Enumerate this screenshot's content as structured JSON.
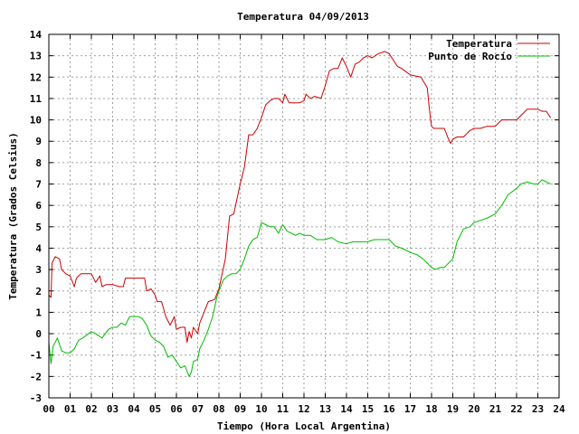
{
  "chart_data": {
    "type": "line",
    "title": "Temperatura 04/09/2013",
    "xlabel": "Tiempo (Hora Local Argentina)",
    "ylabel": "Temperatura (Grados Celsius)",
    "xlim": [
      0,
      24
    ],
    "ylim": [
      -3,
      14
    ],
    "x_ticks": [
      "00",
      "01",
      "02",
      "03",
      "04",
      "05",
      "06",
      "07",
      "08",
      "09",
      "10",
      "11",
      "12",
      "13",
      "14",
      "15",
      "16",
      "17",
      "18",
      "19",
      "20",
      "21",
      "22",
      "23",
      "24"
    ],
    "y_ticks": [
      -3,
      -2,
      -1,
      0,
      1,
      2,
      3,
      4,
      5,
      6,
      7,
      8,
      9,
      10,
      11,
      12,
      13,
      14
    ],
    "grid": true,
    "legend_position": "top-right",
    "series": [
      {
        "name": "Temperatura",
        "color": "#cc0000",
        "x": [
          0,
          0.1,
          0.15,
          0.3,
          0.5,
          0.6,
          0.8,
          1,
          1.2,
          1.3,
          1.5,
          2,
          2.2,
          2.4,
          2.5,
          2.7,
          3,
          3.3,
          3.5,
          3.6,
          4,
          4.3,
          4.5,
          4.6,
          4.8,
          5,
          5.1,
          5.3,
          5.5,
          5.7,
          5.9,
          6,
          6.2,
          6.4,
          6.5,
          6.6,
          6.7,
          6.8,
          7,
          7.1,
          7.3,
          7.5,
          7.8,
          8,
          8.3,
          8.5,
          8.7,
          9,
          9.2,
          9.4,
          9.6,
          9.8,
          10,
          10.2,
          10.4,
          10.6,
          10.8,
          11,
          11.1,
          11.3,
          11.5,
          11.8,
          12,
          12.1,
          12.3,
          12.5,
          12.8,
          13,
          13.2,
          13.4,
          13.6,
          13.8,
          14,
          14.2,
          14.4,
          14.6,
          14.8,
          15,
          15.2,
          15.5,
          15.8,
          16,
          16.2,
          16.4,
          16.6,
          17,
          17.5,
          17.8,
          17.9,
          18,
          18.1,
          18.2,
          18.4,
          18.6,
          18.8,
          18.9,
          19,
          19.2,
          19.5,
          19.8,
          20,
          20.3,
          20.6,
          21,
          21.3,
          21.6,
          22,
          22.2,
          22.5,
          22.8,
          23,
          23.2,
          23.4,
          23.6
        ],
        "values": [
          1.8,
          1.7,
          3.3,
          3.6,
          3.5,
          3.0,
          2.8,
          2.7,
          2.2,
          2.6,
          2.8,
          2.8,
          2.4,
          2.7,
          2.2,
          2.3,
          2.3,
          2.2,
          2.2,
          2.6,
          2.6,
          2.6,
          2.6,
          2.0,
          2.1,
          1.8,
          1.5,
          1.5,
          0.8,
          0.4,
          0.8,
          0.2,
          0.3,
          0.3,
          -0.4,
          0.1,
          -0.2,
          0.3,
          0.0,
          0.5,
          1.0,
          1.5,
          1.6,
          2.1,
          3.5,
          5.5,
          5.6,
          7.0,
          7.8,
          9.3,
          9.3,
          9.6,
          10.1,
          10.7,
          10.9,
          11.0,
          11.0,
          10.8,
          11.2,
          10.8,
          10.8,
          10.8,
          10.9,
          11.2,
          11.0,
          11.1,
          11.0,
          11.6,
          12.3,
          12.4,
          12.4,
          12.9,
          12.5,
          12.0,
          12.6,
          12.7,
          12.9,
          13.0,
          12.9,
          13.1,
          13.2,
          13.1,
          12.8,
          12.5,
          12.4,
          12.1,
          12.0,
          11.5,
          10.5,
          9.7,
          9.6,
          9.6,
          9.6,
          9.6,
          9.1,
          8.9,
          9.1,
          9.2,
          9.2,
          9.5,
          9.6,
          9.6,
          9.7,
          9.7,
          10.0,
          10.0,
          10.0,
          10.2,
          10.5,
          10.5,
          10.5,
          10.4,
          10.4,
          10.1
        ]
      },
      {
        "name": "Punto de Rocío",
        "color": "#00bb00",
        "x": [
          0,
          0.1,
          0.2,
          0.4,
          0.6,
          0.8,
          1,
          1.2,
          1.4,
          1.6,
          2,
          2.2,
          2.5,
          2.8,
          3,
          3.2,
          3.4,
          3.6,
          3.8,
          4,
          4.2,
          4.4,
          4.6,
          4.8,
          5,
          5.2,
          5.4,
          5.6,
          5.8,
          6,
          6.2,
          6.4,
          6.6,
          6.7,
          6.8,
          7,
          7.1,
          7.3,
          7.5,
          7.7,
          7.9,
          8,
          8.2,
          8.4,
          8.6,
          8.8,
          9,
          9.2,
          9.4,
          9.6,
          9.8,
          10,
          10.2,
          10.4,
          10.6,
          10.8,
          11,
          11.2,
          11.4,
          11.6,
          11.8,
          12,
          12.3,
          12.6,
          13,
          13.3,
          13.6,
          14,
          14.3,
          14.6,
          15,
          15.3,
          15.6,
          16,
          16.3,
          16.6,
          17,
          17.3,
          17.6,
          17.8,
          18,
          18.2,
          18.4,
          18.6,
          18.8,
          19,
          19.2,
          19.5,
          19.8,
          20,
          20.3,
          20.6,
          21,
          21.3,
          21.6,
          22,
          22.2,
          22.5,
          22.8,
          23,
          23.2,
          23.4,
          23.6
        ],
        "values": [
          -0.4,
          -1.4,
          -0.6,
          -0.2,
          -0.8,
          -0.9,
          -0.9,
          -0.7,
          -0.3,
          -0.2,
          0.1,
          0.0,
          -0.2,
          0.2,
          0.3,
          0.3,
          0.5,
          0.4,
          0.8,
          0.8,
          0.8,
          0.7,
          0.4,
          -0.1,
          -0.3,
          -0.4,
          -0.6,
          -1.1,
          -1.0,
          -1.3,
          -1.6,
          -1.5,
          -2.0,
          -1.8,
          -1.3,
          -1.2,
          -0.7,
          -0.3,
          0.2,
          0.8,
          1.7,
          2.0,
          2.5,
          2.7,
          2.8,
          2.8,
          3.0,
          3.5,
          4.1,
          4.4,
          4.5,
          5.2,
          5.1,
          5.0,
          5.0,
          4.7,
          5.1,
          4.8,
          4.7,
          4.6,
          4.7,
          4.6,
          4.6,
          4.4,
          4.4,
          4.5,
          4.3,
          4.2,
          4.3,
          4.3,
          4.3,
          4.4,
          4.4,
          4.4,
          4.1,
          4.0,
          3.8,
          3.7,
          3.5,
          3.3,
          3.1,
          3.0,
          3.1,
          3.1,
          3.3,
          3.5,
          4.3,
          4.9,
          5.0,
          5.2,
          5.3,
          5.4,
          5.6,
          6.0,
          6.5,
          6.8,
          7.0,
          7.1,
          7.0,
          7.0,
          7.2,
          7.1,
          7.0
        ]
      }
    ]
  }
}
